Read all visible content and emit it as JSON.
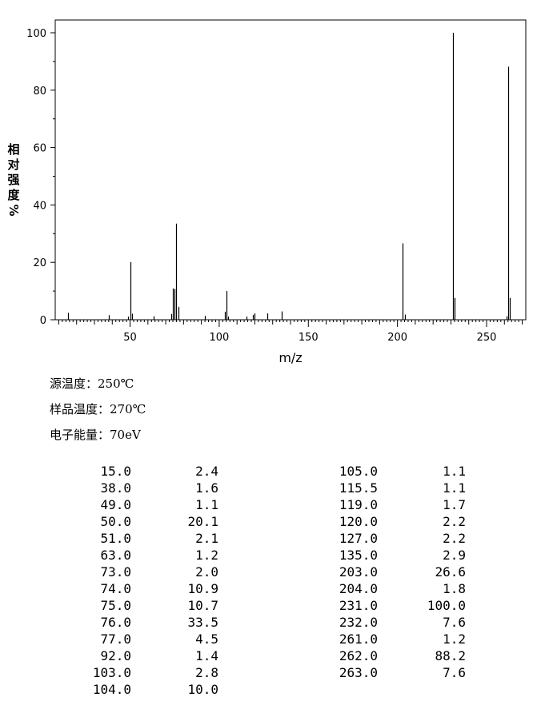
{
  "chart_data": {
    "type": "bar",
    "title": "",
    "xlabel": "m/z",
    "ylabel_chars": [
      "相",
      "对",
      "强",
      "度",
      "%"
    ],
    "xlim": [
      8,
      272
    ],
    "ylim": [
      0,
      104
    ],
    "xticks": [
      50,
      100,
      150,
      200,
      250
    ],
    "yticks": [
      0,
      20,
      40,
      60,
      80,
      100
    ],
    "grid": false,
    "x": [
      15,
      38,
      49,
      50,
      51,
      63,
      73,
      74,
      75,
      76,
      77,
      92,
      103,
      104,
      105,
      115.5,
      119,
      120,
      127,
      135,
      203,
      204,
      231,
      232,
      261,
      262,
      263
    ],
    "values": [
      2.4,
      1.6,
      1.1,
      20.1,
      2.1,
      1.2,
      2.0,
      10.9,
      10.7,
      33.5,
      4.5,
      1.4,
      2.8,
      10.0,
      1.1,
      1.1,
      1.7,
      2.2,
      2.2,
      2.9,
      26.6,
      1.8,
      100.0,
      7.6,
      1.2,
      88.2,
      7.6
    ]
  },
  "conditions": [
    "源温度：250℃",
    "样品温度：270℃",
    "电子能量：70eV"
  ],
  "peak_table": {
    "left": [
      [
        "15.0",
        "2.4"
      ],
      [
        "38.0",
        "1.6"
      ],
      [
        "49.0",
        "1.1"
      ],
      [
        "50.0",
        "20.1"
      ],
      [
        "51.0",
        "2.1"
      ],
      [
        "63.0",
        "1.2"
      ],
      [
        "73.0",
        "2.0"
      ],
      [
        "74.0",
        "10.9"
      ],
      [
        "75.0",
        "10.7"
      ],
      [
        "76.0",
        "33.5"
      ],
      [
        "77.0",
        "4.5"
      ],
      [
        "92.0",
        "1.4"
      ],
      [
        "103.0",
        "2.8"
      ],
      [
        "104.0",
        "10.0"
      ]
    ],
    "right": [
      [
        "105.0",
        "1.1"
      ],
      [
        "115.5",
        "1.1"
      ],
      [
        "119.0",
        "1.7"
      ],
      [
        "120.0",
        "2.2"
      ],
      [
        "127.0",
        "2.2"
      ],
      [
        "135.0",
        "2.9"
      ],
      [
        "203.0",
        "26.6"
      ],
      [
        "204.0",
        "1.8"
      ],
      [
        "231.0",
        "100.0"
      ],
      [
        "232.0",
        "7.6"
      ],
      [
        "261.0",
        "1.2"
      ],
      [
        "262.0",
        "88.2"
      ],
      [
        "263.0",
        "7.6"
      ]
    ]
  }
}
